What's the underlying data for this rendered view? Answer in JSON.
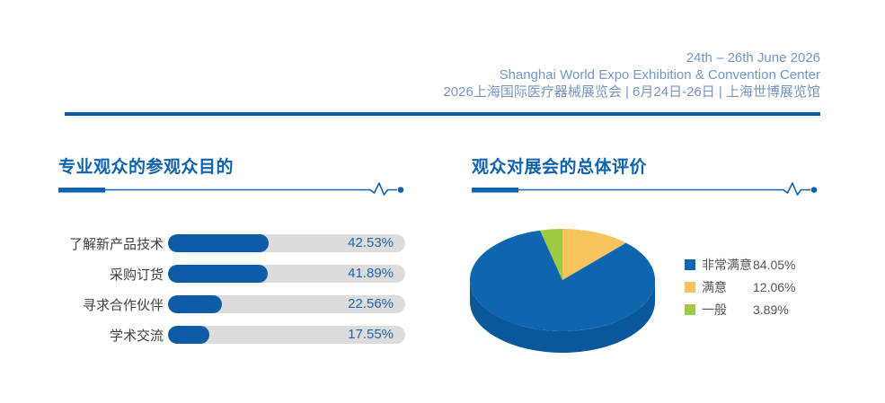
{
  "theme": {
    "accent_blue": "#0f62ac",
    "rule_blue": "#0b59a4",
    "header_text_blue": "#7596c4",
    "bar_value_blue": "#1b64ad",
    "label_gray": "#3f3f3f",
    "legend_text_gray": "#555555"
  },
  "header": {
    "lines": [
      "24th – 26th June 2026",
      "Shanghai World Expo Exhibition & Convention Center",
      "2026上海国际医疗器械展览会 | 6月24日-26日 | 上海世博展览馆"
    ]
  },
  "chart_data": [
    {
      "type": "bar",
      "title": "专业观众的参观众目的",
      "orientation": "horizontal",
      "categories": [
        "了解新产品技术",
        "采购订货",
        "寻求合作伙伴",
        "学术交流"
      ],
      "values": [
        42.53,
        41.89,
        22.56,
        17.55
      ],
      "value_labels": [
        "42.53%",
        "41.89%",
        "22.56%",
        "17.55%"
      ],
      "xlim": [
        0,
        100
      ],
      "bar_color": "#0d5ca7",
      "track_color": "#dcdcdc",
      "grid": false
    },
    {
      "type": "pie",
      "title": "观众对展会的总体评价",
      "style": "3d",
      "legend_position": "right",
      "clockwise": true,
      "start_angle_deg": 0,
      "slices": [
        {
          "label": "非常满意",
          "value": 84.05,
          "value_label": "84.05%",
          "color": "#0f66b0",
          "draw_order": 1
        },
        {
          "label": "满意",
          "value": 12.06,
          "value_label": "12.06%",
          "color": "#f6c35c",
          "draw_order": 0
        },
        {
          "label": "一般",
          "value": 3.89,
          "value_label": "3.89%",
          "color": "#9ecb44",
          "draw_order": 2
        }
      ],
      "side_color": "#0b579c"
    }
  ]
}
